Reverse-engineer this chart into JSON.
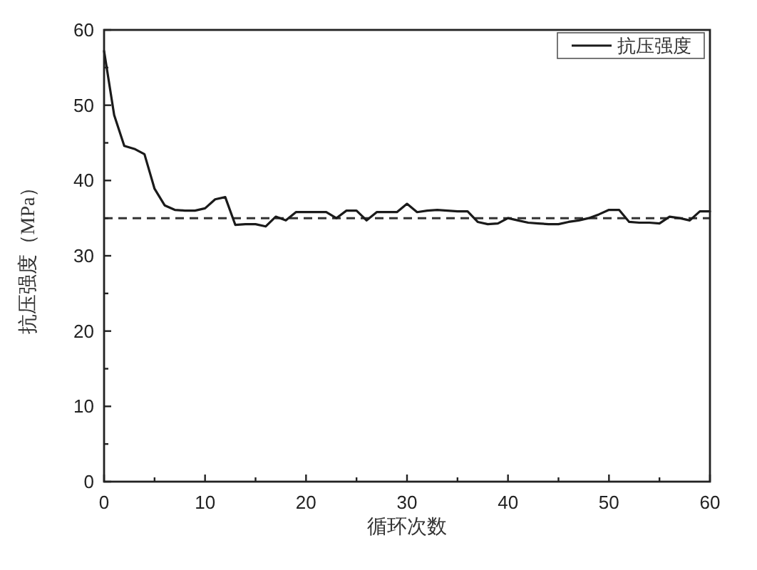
{
  "chart_data": {
    "type": "line",
    "xlabel": "循环次数",
    "ylabel": "抗压强度（MPa）",
    "legend": "top right",
    "x": [
      0,
      1,
      2,
      3,
      4,
      5,
      6,
      7,
      8,
      9,
      10,
      11,
      12,
      13,
      14,
      15,
      16,
      17,
      18,
      19,
      20,
      21,
      22,
      23,
      24,
      25,
      26,
      27,
      28,
      29,
      30,
      31,
      32,
      33,
      34,
      35,
      36,
      37,
      38,
      39,
      40,
      41,
      42,
      43,
      44,
      45,
      46,
      47,
      48,
      49,
      50,
      51,
      52,
      53,
      54,
      55,
      56,
      57,
      58,
      59,
      60
    ],
    "series": [
      {
        "name": "抗压强度",
        "color": "#1a1a1a",
        "values": [
          57.2,
          48.7,
          44.6,
          44.2,
          43.5,
          38.9,
          36.7,
          36.1,
          36.0,
          36.0,
          36.3,
          37.5,
          37.8,
          34.1,
          34.2,
          34.2,
          33.9,
          35.2,
          34.7,
          35.8,
          35.8,
          35.8,
          35.8,
          35.0,
          36.0,
          36.0,
          34.7,
          35.8,
          35.8,
          35.8,
          36.9,
          35.8,
          36.0,
          36.1,
          36.0,
          35.9,
          35.9,
          34.5,
          34.2,
          34.3,
          35.0,
          34.7,
          34.4,
          34.3,
          34.2,
          34.2,
          34.5,
          34.7,
          35.0,
          35.5,
          36.1,
          36.1,
          34.5,
          34.4,
          34.4,
          34.3,
          35.2,
          35.0,
          34.7,
          35.9,
          35.9
        ]
      }
    ],
    "xlim": [
      0,
      60
    ],
    "ylim": [
      0,
      60
    ],
    "xticks": [
      0,
      {
        "value": 5,
        "label": null
      },
      10,
      {
        "value": 15,
        "label": null
      },
      20,
      {
        "value": 25,
        "label": null
      },
      30,
      {
        "value": 35,
        "label": null
      },
      40,
      {
        "value": 45,
        "label": null
      },
      50,
      {
        "value": 55,
        "label": null
      },
      60
    ],
    "yticks": [
      0,
      {
        "value": 5,
        "label": null
      },
      10,
      {
        "value": 15,
        "label": null
      },
      20,
      {
        "value": 25,
        "label": null
      },
      30,
      {
        "value": 35,
        "label": null
      },
      40,
      {
        "value": 45,
        "label": null
      },
      50,
      {
        "value": 55,
        "label": null
      },
      60
    ],
    "ref_lines": [
      {
        "axis": "y",
        "value": 35,
        "color": "#333333",
        "line_style": "dashed"
      }
    ]
  }
}
